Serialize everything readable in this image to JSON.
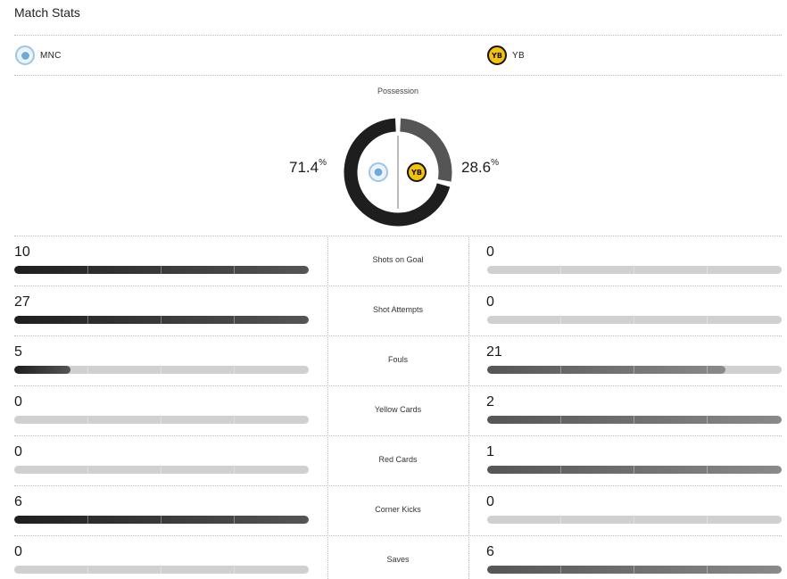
{
  "title": "Match Stats",
  "home": {
    "name": "MNC",
    "logo_icon": "manchester-city-crest",
    "color": "#1e1e1e"
  },
  "away": {
    "name": "YB",
    "logo_icon": "young-boys-crest",
    "logo_text": "YB",
    "color": "#555555"
  },
  "possession": {
    "label": "Possession",
    "home_value": "71.4",
    "away_value": "28.6",
    "unit": "%",
    "home_fraction": 0.714,
    "away_fraction": 0.286
  },
  "stats": [
    {
      "label": "Shots on Goal",
      "home": 10,
      "away": 0
    },
    {
      "label": "Shot Attempts",
      "home": 27,
      "away": 0
    },
    {
      "label": "Fouls",
      "home": 5,
      "away": 21
    },
    {
      "label": "Yellow Cards",
      "home": 0,
      "away": 2
    },
    {
      "label": "Red Cards",
      "home": 0,
      "away": 1
    },
    {
      "label": "Corner Kicks",
      "home": 6,
      "away": 0
    },
    {
      "label": "Saves",
      "home": 0,
      "away": 6
    }
  ]
}
